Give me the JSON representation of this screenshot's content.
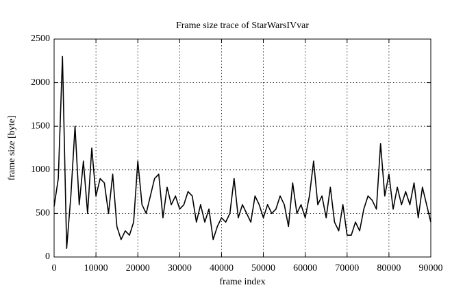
{
  "chart_data": {
    "type": "line",
    "title": "Frame size trace of StarWarsIVvar",
    "xlabel": "frame index",
    "ylabel": "frame size [byte]",
    "x": [
      0,
      1000,
      2000,
      3000,
      4000,
      5000,
      6000,
      7000,
      8000,
      9000,
      10000,
      11000,
      12000,
      13000,
      14000,
      15000,
      16000,
      17000,
      18000,
      19000,
      20000,
      21000,
      22000,
      23000,
      24000,
      25000,
      26000,
      27000,
      28000,
      29000,
      30000,
      31000,
      32000,
      33000,
      34000,
      35000,
      36000,
      37000,
      38000,
      39000,
      40000,
      41000,
      42000,
      43000,
      44000,
      45000,
      46000,
      47000,
      48000,
      49000,
      50000,
      51000,
      52000,
      53000,
      54000,
      55000,
      56000,
      57000,
      58000,
      59000,
      60000,
      61000,
      62000,
      63000,
      64000,
      65000,
      66000,
      67000,
      68000,
      69000,
      70000,
      71000,
      72000,
      73000,
      74000,
      75000,
      76000,
      77000,
      78000,
      79000,
      80000,
      81000,
      82000,
      83000,
      84000,
      85000,
      86000,
      87000,
      88000,
      89000,
      90000
    ],
    "series": [
      {
        "name": "frame size",
        "color": "#000000",
        "values": [
          580,
          900,
          2300,
          100,
          700,
          1500,
          600,
          1100,
          500,
          1250,
          700,
          900,
          850,
          500,
          950,
          350,
          200,
          300,
          250,
          400,
          1100,
          600,
          500,
          700,
          900,
          950,
          450,
          800,
          600,
          700,
          550,
          600,
          750,
          700,
          400,
          600,
          400,
          550,
          200,
          350,
          450,
          400,
          500,
          900,
          450,
          600,
          500,
          400,
          700,
          600,
          450,
          600,
          500,
          550,
          700,
          600,
          350,
          850,
          500,
          600,
          450,
          700,
          1100,
          600,
          700,
          450,
          800,
          400,
          300,
          600,
          250,
          250,
          400,
          300,
          550,
          700,
          650,
          550,
          1300,
          700,
          950,
          550,
          800,
          600,
          750,
          600,
          850,
          450,
          800,
          600,
          400
        ]
      }
    ],
    "xlim": [
      0,
      90000
    ],
    "ylim": [
      0,
      2500
    ],
    "xticks": [
      0,
      10000,
      20000,
      30000,
      40000,
      50000,
      60000,
      70000,
      80000,
      90000
    ],
    "yticks": [
      0,
      500,
      1000,
      1500,
      2000,
      2500
    ],
    "grid": true
  }
}
